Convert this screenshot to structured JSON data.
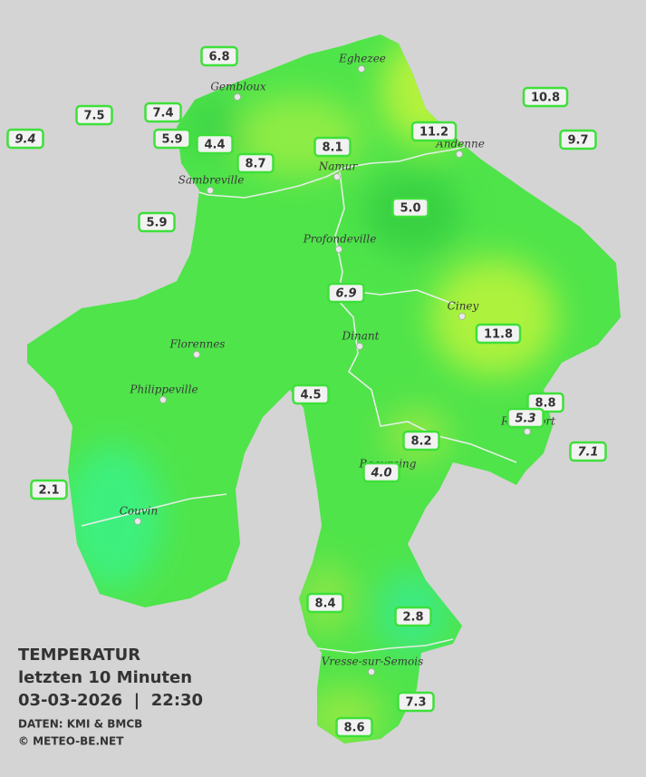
{
  "cities": [
    "Eghezee",
    "Gembloux",
    "Andenne",
    "Namur",
    "Sambreville",
    "Profondeville",
    "Ciney",
    "Dinant",
    "Florennes",
    "Philippeville",
    "Rochefort",
    "Beauraing",
    "Couvin",
    "Vresse-sur-Semois"
  ],
  "stations": [
    "6.8",
    "7.5",
    "7.4",
    "9.4",
    "5.9",
    "4.4",
    "8.7",
    "8.1",
    "11.2",
    "10.8",
    "9.7",
    "5.9",
    "5.0",
    "6.9",
    "11.8",
    "4.5",
    "8.8",
    "5.3",
    "8.2",
    "7.1",
    "4.0",
    "2.1",
    "8.4",
    "2.8",
    "7.3",
    "8.6"
  ],
  "legend": {
    "title": "TEMPERATUR",
    "subtitle": "letzten 10 Minuten",
    "datetime": "03-03-2026  |  22:30",
    "source": "DATEN: KMI & BMCB",
    "copyright": "© METEO-BE.NET"
  }
}
